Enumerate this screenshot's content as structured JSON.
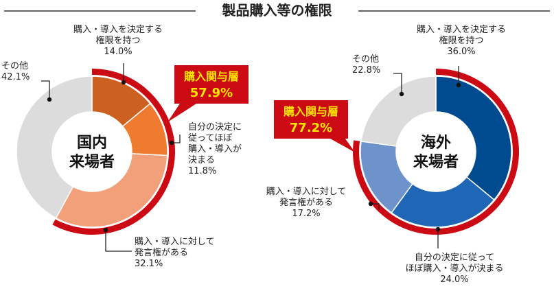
{
  "title": "製品購入等の権限",
  "colors": {
    "title_line": "#333333",
    "ring": "#cc0a14",
    "callout_bg": "#cc0a14",
    "callout_text": "#ffe600",
    "other": "#dcdcdc",
    "label_text": "#222222",
    "center_text": "#111111",
    "leader": "#222222",
    "dot": "#111111"
  },
  "chart_data": [
    {
      "type": "pie",
      "center_label": [
        "国内",
        "来場者"
      ],
      "callout": {
        "title": "購入関与層",
        "value": "57.9%"
      },
      "slices": [
        {
          "label": [
            "購入・導入を決定する",
            "権限を持つ"
          ],
          "value_text": "14.0%",
          "value": 14.0,
          "color": "#cb6021"
        },
        {
          "label": [
            "自分の決定に",
            "従ってほぼ",
            "購入・導入が",
            "決まる"
          ],
          "value_text": "11.8%",
          "value": 11.8,
          "color": "#ee7b2f"
        },
        {
          "label": [
            "購入・導入に対して",
            "発言権がある"
          ],
          "value_text": "32.1%",
          "value": 32.1,
          "color": "#f2a07a"
        },
        {
          "label": [
            "その他"
          ],
          "value_text": "42.1%",
          "value": 42.1,
          "color": "#dcdcdc"
        }
      ]
    },
    {
      "type": "pie",
      "center_label": [
        "海外",
        "来場者"
      ],
      "callout": {
        "title": "購入関与層",
        "value": "77.2%"
      },
      "slices": [
        {
          "label": [
            "購入・導入を決定する",
            "権限を持つ"
          ],
          "value_text": "36.0%",
          "value": 36.0,
          "color": "#004a8f"
        },
        {
          "label": [
            "自分の決定に従って",
            "ほぼ購入・導入が決まる"
          ],
          "value_text": "24.0%",
          "value": 24.0,
          "color": "#1f66b6"
        },
        {
          "label": [
            "購入・導入に対して",
            "発言権がある"
          ],
          "value_text": "17.2%",
          "value": 17.2,
          "color": "#6e93cb"
        },
        {
          "label": [
            "その他"
          ],
          "value_text": "22.8%",
          "value": 22.8,
          "color": "#dcdcdc"
        }
      ]
    }
  ]
}
